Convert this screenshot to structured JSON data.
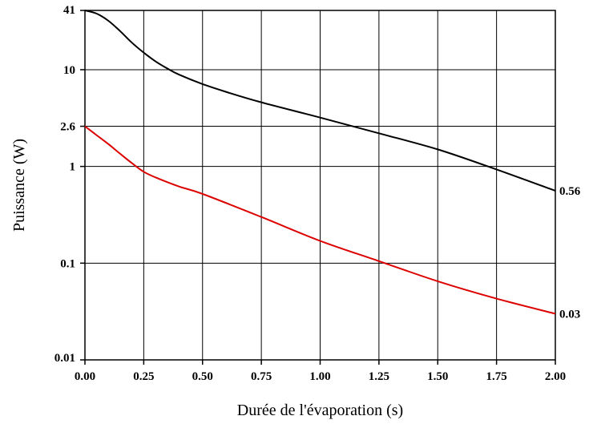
{
  "chart_data": {
    "type": "line",
    "xlabel": "Durée de l'évaporation (s)",
    "ylabel": "Puissance (W)",
    "xlim": [
      0,
      2
    ],
    "ylim": [
      0.01,
      41
    ],
    "yscale": "log",
    "grid": true,
    "x_ticks": [
      "0.00",
      "0.25",
      "0.50",
      "0.75",
      "1.00",
      "1.25",
      "1.50",
      "1.75",
      "2.00"
    ],
    "y_ticks": [
      {
        "value": 0.01,
        "label": "0.01"
      },
      {
        "value": 0.1,
        "label": "0.1"
      },
      {
        "value": 1,
        "label": "1"
      },
      {
        "value": 2.6,
        "label": "2.6"
      },
      {
        "value": 10,
        "label": "10"
      },
      {
        "value": 41,
        "label": "41"
      }
    ],
    "series": [
      {
        "color": "#000000",
        "end_label": "0.56",
        "x": [
          0,
          0.05,
          0.1,
          0.15,
          0.2,
          0.25,
          0.3,
          0.35,
          0.4,
          0.5,
          0.6,
          0.75,
          1.0,
          1.25,
          1.5,
          1.75,
          2.0
        ],
        "y": [
          41,
          38,
          32,
          25,
          19,
          15,
          12.2,
          10.3,
          8.9,
          7.1,
          5.9,
          4.6,
          3.2,
          2.2,
          1.5,
          0.93,
          0.56
        ]
      },
      {
        "color": "#dd0000",
        "end_label": "0.03",
        "x": [
          0,
          0.05,
          0.1,
          0.15,
          0.2,
          0.25,
          0.3,
          0.4,
          0.5,
          0.75,
          1.0,
          1.25,
          1.5,
          1.75,
          2.0
        ],
        "y": [
          2.6,
          2.1,
          1.7,
          1.35,
          1.08,
          0.88,
          0.77,
          0.62,
          0.52,
          0.3,
          0.17,
          0.105,
          0.065,
          0.043,
          0.03
        ]
      }
    ]
  }
}
